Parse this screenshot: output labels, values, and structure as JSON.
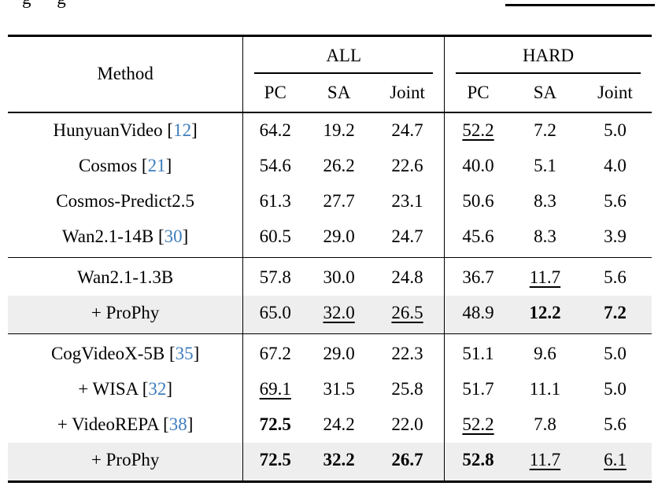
{
  "colors": {
    "citation_blue": "#3E7DBD",
    "row_shade": "#EEEEEE",
    "rule_black": "#000000"
  },
  "caption_fragment": {
    "letters": [
      "g",
      "g"
    ],
    "right_underline": true
  },
  "table": {
    "method_header": "Method",
    "groups": [
      {
        "label": "ALL"
      },
      {
        "label": "HARD"
      }
    ],
    "subheaders": [
      "PC",
      "SA",
      "Joint",
      "PC",
      "SA",
      "Joint"
    ],
    "sections": [
      {
        "rows": [
          {
            "method": "HunyuanVideo",
            "cite": "12",
            "shaded": false,
            "cells": [
              {
                "v": "64.2",
                "s": ""
              },
              {
                "v": "19.2",
                "s": ""
              },
              {
                "v": "24.7",
                "s": ""
              },
              {
                "v": "52.2",
                "s": "u"
              },
              {
                "v": "7.2",
                "s": ""
              },
              {
                "v": "5.0",
                "s": ""
              }
            ]
          },
          {
            "method": "Cosmos",
            "cite": "21",
            "shaded": false,
            "cells": [
              {
                "v": "54.6",
                "s": ""
              },
              {
                "v": "26.2",
                "s": ""
              },
              {
                "v": "22.6",
                "s": ""
              },
              {
                "v": "40.0",
                "s": ""
              },
              {
                "v": "5.1",
                "s": ""
              },
              {
                "v": "4.0",
                "s": ""
              }
            ]
          },
          {
            "method": "Cosmos-Predict2.5",
            "cite": null,
            "shaded": false,
            "cells": [
              {
                "v": "61.3",
                "s": ""
              },
              {
                "v": "27.7",
                "s": ""
              },
              {
                "v": "23.1",
                "s": ""
              },
              {
                "v": "50.6",
                "s": ""
              },
              {
                "v": "8.3",
                "s": ""
              },
              {
                "v": "5.6",
                "s": ""
              }
            ]
          },
          {
            "method": "Wan2.1-14B",
            "cite": "30",
            "shaded": false,
            "cells": [
              {
                "v": "60.5",
                "s": ""
              },
              {
                "v": "29.0",
                "s": ""
              },
              {
                "v": "24.7",
                "s": ""
              },
              {
                "v": "45.6",
                "s": ""
              },
              {
                "v": "8.3",
                "s": ""
              },
              {
                "v": "3.9",
                "s": ""
              }
            ]
          }
        ]
      },
      {
        "rows": [
          {
            "method": "Wan2.1-1.3B",
            "cite": null,
            "shaded": false,
            "cells": [
              {
                "v": "57.8",
                "s": ""
              },
              {
                "v": "30.0",
                "s": ""
              },
              {
                "v": "24.8",
                "s": ""
              },
              {
                "v": "36.7",
                "s": ""
              },
              {
                "v": "11.7",
                "s": "u"
              },
              {
                "v": "5.6",
                "s": ""
              }
            ]
          },
          {
            "method": "+ ProPhy",
            "cite": null,
            "shaded": true,
            "cells": [
              {
                "v": "65.0",
                "s": ""
              },
              {
                "v": "32.0",
                "s": "u"
              },
              {
                "v": "26.5",
                "s": "u"
              },
              {
                "v": "48.9",
                "s": ""
              },
              {
                "v": "12.2",
                "s": "b"
              },
              {
                "v": "7.2",
                "s": "b"
              }
            ]
          }
        ]
      },
      {
        "rows": [
          {
            "method": "CogVideoX-5B",
            "cite": "35",
            "shaded": false,
            "cells": [
              {
                "v": "67.2",
                "s": ""
              },
              {
                "v": "29.0",
                "s": ""
              },
              {
                "v": "22.3",
                "s": ""
              },
              {
                "v": "51.1",
                "s": ""
              },
              {
                "v": "9.6",
                "s": ""
              },
              {
                "v": "5.0",
                "s": ""
              }
            ]
          },
          {
            "method": "+ WISA",
            "cite": "32",
            "shaded": false,
            "cells": [
              {
                "v": "69.1",
                "s": "u"
              },
              {
                "v": "31.5",
                "s": ""
              },
              {
                "v": "25.8",
                "s": ""
              },
              {
                "v": "51.7",
                "s": ""
              },
              {
                "v": "11.1",
                "s": ""
              },
              {
                "v": "5.0",
                "s": ""
              }
            ]
          },
          {
            "method": "+ VideoREPA",
            "cite": "38",
            "shaded": false,
            "cells": [
              {
                "v": "72.5",
                "s": "b"
              },
              {
                "v": "24.2",
                "s": ""
              },
              {
                "v": "22.0",
                "s": ""
              },
              {
                "v": "52.2",
                "s": "u"
              },
              {
                "v": "7.8",
                "s": ""
              },
              {
                "v": "5.6",
                "s": ""
              }
            ]
          },
          {
            "method": "+ ProPhy",
            "cite": null,
            "shaded": true,
            "cells": [
              {
                "v": "72.5",
                "s": "b"
              },
              {
                "v": "32.2",
                "s": "b"
              },
              {
                "v": "26.7",
                "s": "b"
              },
              {
                "v": "52.8",
                "s": "b"
              },
              {
                "v": "11.7",
                "s": "u"
              },
              {
                "v": "6.1",
                "s": "u"
              }
            ]
          }
        ]
      }
    ]
  }
}
